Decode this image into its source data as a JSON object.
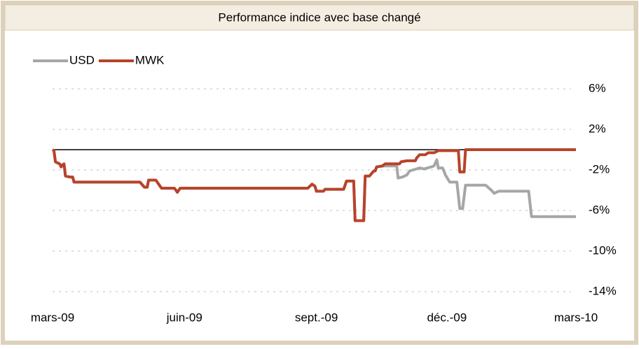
{
  "chart_data": {
    "type": "line",
    "title": "Performance indice avec base changé",
    "xlim": [
      0,
      365
    ],
    "xticks": [
      {
        "value": 0,
        "label": "mars-09"
      },
      {
        "value": 92,
        "label": "juin-09"
      },
      {
        "value": 184,
        "label": "sept.-09"
      },
      {
        "value": 275,
        "label": "déc.-09"
      },
      {
        "value": 365,
        "label": "mars-10"
      }
    ],
    "ylim": [
      -14,
      6
    ],
    "yticks": [
      {
        "value": 6,
        "label": "6%"
      },
      {
        "value": 2,
        "label": "2%"
      },
      {
        "value": -2,
        "label": "-2%"
      },
      {
        "value": -6,
        "label": "-6%"
      },
      {
        "value": -10,
        "label": "-10%"
      },
      {
        "value": -14,
        "label": "-14%"
      }
    ],
    "grid": true,
    "legend": "top-left",
    "baseline": 0,
    "baseline_color": "#000000",
    "series": [
      {
        "name": "USD",
        "color": "#a6a6a6",
        "x": [
          0,
          1,
          2,
          5,
          6,
          7,
          8,
          9,
          12,
          14,
          15,
          61,
          64,
          66,
          67,
          72,
          76,
          85,
          87,
          89,
          178,
          181,
          183,
          184,
          189,
          190,
          203,
          205,
          210,
          211,
          217,
          218,
          221,
          224,
          225,
          226,
          232,
          240,
          241,
          244,
          247,
          249,
          256,
          259,
          264,
          266,
          268,
          269,
          272,
          274,
          277,
          282,
          284,
          286,
          288,
          302,
          306,
          308,
          311,
          332,
          334,
          365
        ],
        "values": [
          0,
          -0.1,
          -1.2,
          -1.4,
          -1.7,
          -1.5,
          -1.4,
          -2.6,
          -2.7,
          -2.7,
          -3.2,
          -3.2,
          -3.7,
          -3.7,
          -3.0,
          -3.0,
          -3.8,
          -3.8,
          -4.2,
          -3.8,
          -3.8,
          -3.4,
          -3.6,
          -4.1,
          -4.1,
          -3.9,
          -3.9,
          -3.1,
          -3.1,
          -7.0,
          -7.0,
          -2.6,
          -2.6,
          -2.1,
          -2.1,
          -1.7,
          -1.6,
          -1.6,
          -2.8,
          -2.7,
          -2.5,
          -2.1,
          -1.8,
          -1.9,
          -1.7,
          -1.6,
          -1.0,
          -1.8,
          -1.8,
          -2.5,
          -3.2,
          -3.2,
          -5.8,
          -5.8,
          -3.5,
          -3.5,
          -4.0,
          -4.3,
          -4.1,
          -4.1,
          -6.6,
          -6.6
        ]
      },
      {
        "name": "MWK",
        "color": "#b8432a",
        "x": [
          0,
          1,
          2,
          5,
          6,
          7,
          8,
          9,
          12,
          14,
          15,
          61,
          64,
          66,
          67,
          72,
          76,
          85,
          87,
          89,
          178,
          181,
          183,
          184,
          189,
          190,
          203,
          205,
          210,
          211,
          217,
          218,
          221,
          224,
          225,
          226,
          230,
          232,
          242,
          243,
          247,
          253,
          254,
          256,
          260,
          262,
          266,
          269,
          283,
          284,
          287,
          288,
          365
        ],
        "values": [
          0,
          -0.1,
          -1.2,
          -1.4,
          -1.7,
          -1.5,
          -1.4,
          -2.6,
          -2.7,
          -2.7,
          -3.2,
          -3.2,
          -3.7,
          -3.7,
          -3.0,
          -3.0,
          -3.8,
          -3.8,
          -4.2,
          -3.8,
          -3.8,
          -3.4,
          -3.6,
          -4.1,
          -4.1,
          -3.9,
          -3.9,
          -3.1,
          -3.1,
          -7.0,
          -7.0,
          -2.6,
          -2.6,
          -2.1,
          -2.1,
          -1.7,
          -1.6,
          -1.4,
          -1.4,
          -1.2,
          -1.1,
          -1.1,
          -0.8,
          -0.5,
          -0.5,
          -0.3,
          -0.3,
          -0.1,
          -0.1,
          -2.2,
          -2.2,
          0,
          0
        ]
      }
    ]
  }
}
